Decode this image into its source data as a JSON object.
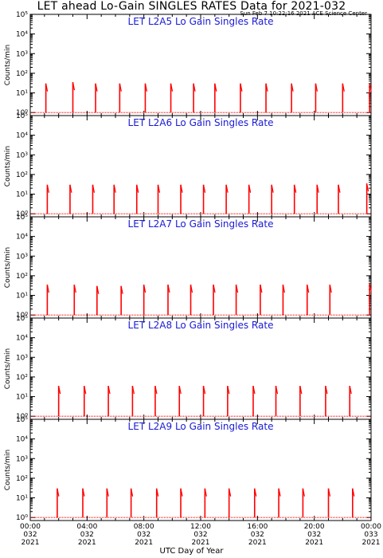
{
  "header": {
    "title": "LET ahead Lo-Gain SINGLES RATES Data for 2021-032",
    "timestamp": "Sun Feb  7 10:22:16 2021 ACE Science Center"
  },
  "chart_data": [
    {
      "type": "line",
      "title": "LET L2A5 Lo Gain Singles Rate",
      "ylabel": "Counts/min",
      "yscale": "log",
      "ylim": [
        0.7,
        100000
      ],
      "xlim": [
        0,
        24
      ],
      "color": "#ff0000",
      "series": [
        {
          "x": [
            1.1,
            3.0,
            4.6,
            6.3,
            8.1,
            9.9,
            11.5,
            13.0,
            14.8,
            16.6,
            18.4,
            20.1,
            22.0,
            23.9
          ],
          "y": [
            30,
            35,
            30,
            30,
            30,
            30,
            30,
            30,
            30,
            30,
            30,
            30,
            30,
            30
          ]
        }
      ]
    },
    {
      "type": "line",
      "title": "LET L2A6 Lo Gain Singles Rate",
      "ylabel": "Counts/min",
      "yscale": "log",
      "ylim": [
        0.7,
        100000
      ],
      "xlim": [
        0,
        24
      ],
      "color": "#ff0000",
      "series": [
        {
          "x": [
            1.2,
            2.8,
            4.4,
            5.9,
            7.5,
            9.0,
            10.6,
            12.2,
            13.8,
            15.4,
            17.0,
            18.6,
            20.2,
            21.7,
            23.7
          ],
          "y": [
            30,
            30,
            30,
            30,
            30,
            30,
            30,
            30,
            30,
            30,
            30,
            30,
            30,
            30,
            35
          ]
        }
      ]
    },
    {
      "type": "line",
      "title": "LET L2A7 Lo Gain Singles Rate",
      "ylabel": "Counts/min",
      "yscale": "log",
      "ylim": [
        0.7,
        100000
      ],
      "xlim": [
        0,
        24
      ],
      "color": "#ff0000",
      "series": [
        {
          "x": [
            1.2,
            3.1,
            4.7,
            6.4,
            8.0,
            9.7,
            11.3,
            12.9,
            14.5,
            16.2,
            17.8,
            19.5,
            21.1,
            23.9
          ],
          "y": [
            35,
            35,
            30,
            30,
            35,
            35,
            35,
            35,
            35,
            35,
            35,
            35,
            35,
            40
          ]
        }
      ]
    },
    {
      "type": "line",
      "title": "LET L2A8 Lo Gain Singles Rate",
      "ylabel": "Counts/min",
      "yscale": "log",
      "ylim": [
        0.7,
        100000
      ],
      "xlim": [
        0,
        24
      ],
      "color": "#ff0000",
      "series": [
        {
          "x": [
            2.0,
            3.8,
            5.5,
            7.2,
            8.8,
            10.5,
            12.2,
            13.9,
            15.7,
            17.3,
            19.0,
            20.8,
            22.5
          ],
          "y": [
            35,
            35,
            35,
            35,
            35,
            35,
            35,
            35,
            35,
            35,
            35,
            35,
            35
          ]
        }
      ]
    },
    {
      "type": "line",
      "title": "LET L2A9 Lo Gain Singles Rate",
      "ylabel": "Counts/min",
      "yscale": "log",
      "ylim": [
        0.7,
        100000
      ],
      "xlim": [
        0,
        24
      ],
      "color": "#ff0000",
      "series": [
        {
          "x": [
            1.9,
            3.7,
            5.4,
            7.1,
            8.9,
            10.6,
            12.3,
            14.0,
            15.8,
            17.5,
            19.2,
            21.0,
            22.7
          ],
          "y": [
            30,
            30,
            30,
            30,
            30,
            30,
            30,
            30,
            30,
            30,
            30,
            30,
            30
          ]
        }
      ]
    }
  ],
  "y_ticks": [
    "10⁰",
    "10¹",
    "10²",
    "10³",
    "10⁴",
    "10⁵"
  ],
  "x_ticks": [
    {
      "time": "00:00",
      "doy": "032",
      "year": "2021"
    },
    {
      "time": "04:00",
      "doy": "032",
      "year": "2021"
    },
    {
      "time": "08:00",
      "doy": "032",
      "year": "2021"
    },
    {
      "time": "12:00",
      "doy": "032",
      "year": "2021"
    },
    {
      "time": "16:00",
      "doy": "032",
      "year": "2021"
    },
    {
      "time": "20:00",
      "doy": "032",
      "year": "2021"
    },
    {
      "time": "00:00",
      "doy": "033",
      "year": "2021"
    }
  ],
  "xlabel": "UTC Day of Year"
}
